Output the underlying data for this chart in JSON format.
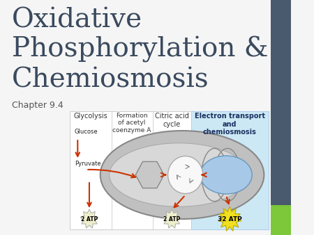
{
  "title_line1": "Oxidative",
  "title_line2": "Phosphorylation &",
  "title_line3": "Chemiosmosis",
  "subtitle": "Chapter 9.4",
  "title_color": "#3a4a5e",
  "subtitle_color": "#555555",
  "slide_bg": "#f5f5f5",
  "right_bar_color": "#4a5a6e",
  "green_bar_color": "#7cc83a",
  "arrow_color": "#cc3300",
  "section_labels": [
    "Glycolysis",
    "Formation\nof acetyl\ncoenzyme A",
    "Citric acid\ncycle",
    "Electron transport\nand\nchemiosmosis"
  ],
  "atp_labels": [
    "2 ATP",
    "2 ATP",
    "32 ATP"
  ],
  "highlight_fill": "#cce8f4",
  "highlight_edge": "#aaccee",
  "mito_outer_fill": "#c0c0c0",
  "mito_outer_edge": "#888888",
  "mito_inner_fill": "#d8d8d8",
  "mito_inner_edge": "#aaaaaa",
  "hex_fill": "#c8c8c8",
  "hex_edge": "#888888",
  "circle_fill": "#f8f8f8",
  "circle_edge": "#aaaaaa",
  "blue_fill": "#a8c8e8",
  "blue_edge": "#6699bb",
  "atp_small_fill": "#eeeecc",
  "atp_small_edge": "#aaaaaa",
  "atp_large_fill": "#f0e020",
  "atp_large_edge": "#bbaa00"
}
